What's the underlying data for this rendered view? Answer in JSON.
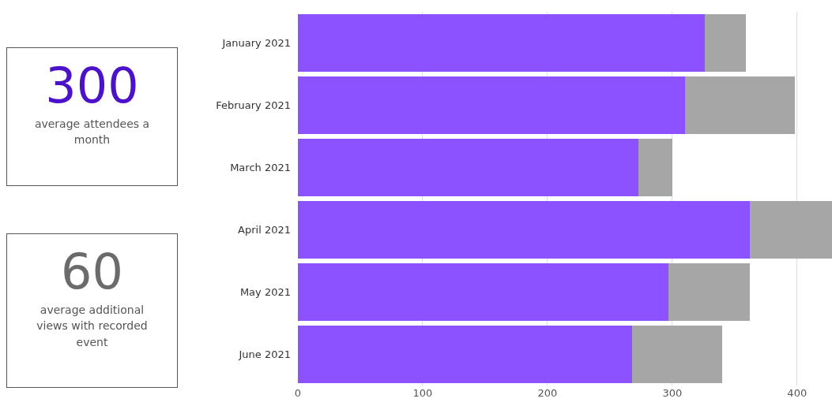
{
  "chart_data": [
    {
      "type": "other",
      "title": "300",
      "subtitle": "average attendees a month",
      "color": "#4b12c9"
    },
    {
      "type": "other",
      "title": "60",
      "subtitle": "average additional views with recorded event",
      "color": "#6b6b6b"
    },
    {
      "type": "bar",
      "orientation": "horizontal",
      "stacked": true,
      "categories": [
        "January 2021",
        "February 2021",
        "March 2021",
        "April 2021",
        "May 2021",
        "June 2021"
      ],
      "series": [
        {
          "color": "#8c52ff",
          "values": [
            326,
            310,
            273,
            362,
            297,
            268
          ]
        },
        {
          "color": "#a6a6a6",
          "values": [
            33,
            88,
            27,
            66,
            65,
            72
          ]
        }
      ],
      "xlim": [
        0,
        428
      ],
      "xticks": [
        0,
        100,
        200,
        300,
        400
      ],
      "grid": "x"
    }
  ]
}
